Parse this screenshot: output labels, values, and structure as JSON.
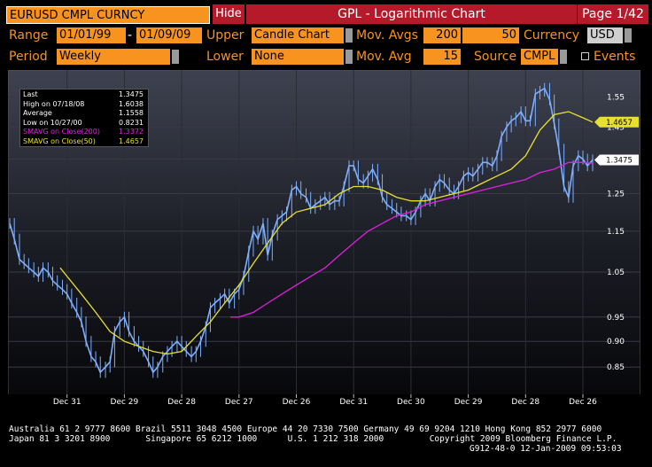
{
  "header": {
    "security": "EURUSD CMPL CURNCY",
    "hide_label": "Hide",
    "title": "GPL - Logarithmic Chart",
    "page": "Page 1/42"
  },
  "controls": {
    "range_label": "Range",
    "range_start": "01/01/99",
    "range_sep": "-",
    "range_end": "01/09/09",
    "upper_label": "Upper",
    "upper_value": "Candle Chart",
    "mov_avgs_label": "Mov. Avgs",
    "mov_avg_1": "200",
    "mov_avg_2": "50",
    "currency_label": "Currency",
    "currency_value": "USD",
    "period_label": "Period",
    "period_value": "Weekly",
    "lower_label": "Lower",
    "lower_value": "None",
    "mov_avg_label": "Mov. Avg",
    "mov_avg_lower": "15",
    "source_label": "Source",
    "source_value": "CMPL",
    "events_label": "Events"
  },
  "legend": [
    {
      "label": "Last",
      "value": "1.3475",
      "color": "#ffffff"
    },
    {
      "label": "High on  07/18/08",
      "value": "1.6038",
      "color": "#ffffff"
    },
    {
      "label": "Average",
      "value": "1.1558",
      "color": "#ffffff"
    },
    {
      "label": "Low on  10/27/00",
      "value": "0.8231",
      "color": "#ffffff"
    },
    {
      "label": "SMAVG on Close(200)",
      "value": "1.3372",
      "color": "#e020e0"
    },
    {
      "label": "SMAVG on Close(50)",
      "value": "1.4657",
      "color": "#e8e030"
    }
  ],
  "chart_data": {
    "type": "line",
    "title": "",
    "scale": "log",
    "ylim": [
      0.8,
      1.62
    ],
    "y_ticks": [
      "1.55",
      "1.45",
      "1.35",
      "1.25",
      "1.15",
      "1.05",
      "0.95",
      "0.90",
      "0.85"
    ],
    "y_tick_values": [
      1.55,
      1.45,
      1.35,
      1.25,
      1.15,
      1.05,
      0.95,
      0.9,
      0.85
    ],
    "x_ticks": [
      {
        "month": "Dec 31",
        "year": "1999",
        "t": 1999.0
      },
      {
        "month": "Dec 29",
        "year": "2000",
        "t": 2000.0
      },
      {
        "month": "Dec 28",
        "year": "2001",
        "t": 2001.0
      },
      {
        "month": "Dec 27",
        "year": "2002",
        "t": 2002.0
      },
      {
        "month": "Dec 26",
        "year": "2003",
        "t": 2003.0
      },
      {
        "month": "Dec 31",
        "year": "2004",
        "t": 2004.0
      },
      {
        "month": "Dec 30",
        "year": "2005",
        "t": 2005.0
      },
      {
        "month": "Dec 29",
        "year": "2006",
        "t": 2006.0
      },
      {
        "month": "Dec 28",
        "year": "2007",
        "t": 2007.0
      },
      {
        "month": "Dec 26",
        "year": "2008",
        "t": 2008.0
      }
    ],
    "xlim": [
      1998.0,
      2008.17
    ],
    "series": [
      {
        "name": "EURUSD",
        "color": "#7fb0ff",
        "x": [
          1998.0,
          1998.08,
          1998.17,
          1998.25,
          1998.33,
          1998.42,
          1998.5,
          1998.58,
          1998.67,
          1998.75,
          1998.83,
          1998.92,
          1999.0,
          1999.08,
          1999.17,
          1999.25,
          1999.33,
          1999.42,
          1999.5,
          1999.58,
          1999.67,
          1999.75,
          1999.83,
          1999.92,
          2000.0,
          2000.08,
          2000.17,
          2000.25,
          2000.33,
          2000.42,
          2000.5,
          2000.58,
          2000.67,
          2000.75,
          2000.83,
          2000.92,
          2001.0,
          2001.08,
          2001.17,
          2001.25,
          2001.33,
          2001.42,
          2001.5,
          2001.58,
          2001.67,
          2001.75,
          2001.83,
          2001.92,
          2002.0,
          2002.08,
          2002.17,
          2002.25,
          2002.33,
          2002.42,
          2002.5,
          2002.58,
          2002.67,
          2002.75,
          2002.83,
          2002.92,
          2003.0,
          2003.08,
          2003.17,
          2003.25,
          2003.33,
          2003.42,
          2003.5,
          2003.58,
          2003.67,
          2003.75,
          2003.83,
          2003.92,
          2004.0,
          2004.08,
          2004.17,
          2004.25,
          2004.33,
          2004.42,
          2004.5,
          2004.58,
          2004.67,
          2004.75,
          2004.83,
          2004.92,
          2005.0,
          2005.08,
          2005.17,
          2005.25,
          2005.33,
          2005.42,
          2005.5,
          2005.58,
          2005.67,
          2005.75,
          2005.83,
          2005.92,
          2006.0,
          2006.08,
          2006.17,
          2006.25,
          2006.33,
          2006.42,
          2006.5,
          2006.58,
          2006.67,
          2006.75,
          2006.83,
          2006.92,
          2007.0,
          2007.08,
          2007.17,
          2007.25,
          2007.33,
          2007.42,
          2007.5,
          2007.58,
          2007.67,
          2007.75,
          2007.83,
          2007.92,
          2008.0,
          2008.08,
          2008.17
        ],
        "values": [
          1.17,
          1.13,
          1.08,
          1.07,
          1.06,
          1.05,
          1.04,
          1.06,
          1.05,
          1.03,
          1.02,
          1.01,
          1.0,
          0.98,
          0.96,
          0.94,
          0.9,
          0.87,
          0.86,
          0.84,
          0.85,
          0.86,
          0.92,
          0.94,
          0.95,
          0.92,
          0.9,
          0.89,
          0.88,
          0.86,
          0.84,
          0.85,
          0.87,
          0.88,
          0.89,
          0.9,
          0.89,
          0.88,
          0.87,
          0.88,
          0.9,
          0.93,
          0.97,
          0.98,
          0.99,
          1.0,
          0.98,
          1.0,
          1.01,
          1.04,
          1.1,
          1.15,
          1.13,
          1.17,
          1.09,
          1.14,
          1.18,
          1.19,
          1.2,
          1.26,
          1.27,
          1.25,
          1.24,
          1.21,
          1.22,
          1.23,
          1.24,
          1.22,
          1.23,
          1.23,
          1.27,
          1.33,
          1.33,
          1.29,
          1.28,
          1.3,
          1.32,
          1.29,
          1.24,
          1.22,
          1.21,
          1.2,
          1.19,
          1.19,
          1.18,
          1.2,
          1.23,
          1.25,
          1.23,
          1.27,
          1.29,
          1.28,
          1.26,
          1.25,
          1.27,
          1.3,
          1.31,
          1.3,
          1.32,
          1.34,
          1.34,
          1.33,
          1.36,
          1.42,
          1.45,
          1.47,
          1.48,
          1.5,
          1.47,
          1.47,
          1.56,
          1.57,
          1.58,
          1.54,
          1.46,
          1.38,
          1.27,
          1.24,
          1.33,
          1.36,
          1.35,
          1.33,
          1.3475
        ]
      },
      {
        "name": "SMAVG on Close(50)",
        "color": "#e8e030",
        "x": [
          1998.88,
          1999.0,
          1999.25,
          1999.5,
          1999.75,
          2000.0,
          2000.25,
          2000.5,
          2000.75,
          2001.0,
          2001.25,
          2001.5,
          2001.75,
          2002.0,
          2002.25,
          2002.5,
          2002.75,
          2003.0,
          2003.25,
          2003.5,
          2003.75,
          2004.0,
          2004.25,
          2004.5,
          2004.75,
          2005.0,
          2005.25,
          2005.5,
          2005.75,
          2006.0,
          2006.25,
          2006.5,
          2006.75,
          2007.0,
          2007.25,
          2007.5,
          2007.75,
          2008.0,
          2008.17
        ],
        "values": [
          1.06,
          1.04,
          1.0,
          0.96,
          0.92,
          0.9,
          0.89,
          0.88,
          0.875,
          0.88,
          0.91,
          0.94,
          0.98,
          1.02,
          1.07,
          1.12,
          1.17,
          1.2,
          1.21,
          1.22,
          1.25,
          1.27,
          1.27,
          1.26,
          1.24,
          1.23,
          1.23,
          1.24,
          1.25,
          1.26,
          1.28,
          1.3,
          1.32,
          1.36,
          1.44,
          1.49,
          1.5,
          1.48,
          1.4657
        ]
      },
      {
        "name": "SMAVG on Close(200)",
        "color": "#e020e0",
        "x": [
          2001.85,
          2002.0,
          2002.25,
          2002.5,
          2002.75,
          2003.0,
          2003.25,
          2003.5,
          2003.75,
          2004.0,
          2004.25,
          2004.5,
          2004.75,
          2005.0,
          2005.25,
          2005.5,
          2005.75,
          2006.0,
          2006.25,
          2006.5,
          2006.75,
          2007.0,
          2007.25,
          2007.5,
          2007.75,
          2008.0,
          2008.17
        ],
        "values": [
          0.95,
          0.95,
          0.96,
          0.98,
          1.0,
          1.02,
          1.04,
          1.06,
          1.09,
          1.12,
          1.15,
          1.17,
          1.19,
          1.2,
          1.22,
          1.23,
          1.24,
          1.25,
          1.26,
          1.27,
          1.28,
          1.29,
          1.31,
          1.32,
          1.34,
          1.34,
          1.3372
        ]
      }
    ],
    "price_tags": [
      {
        "label": "1.4657",
        "value": 1.4657,
        "bg": "#e8e030",
        "fg": "#000000"
      },
      {
        "label": "1.3475",
        "value": 1.3475,
        "bg": "#ffffff",
        "fg": "#000000"
      }
    ]
  },
  "footer": {
    "line1": "Australia 61 2 9777 8600 Brazil 5511 3048 4500 Europe 44 20 7330 7500 Germany 49 69 9204 1210 Hong Kong 852 2977 6000",
    "line2": "Japan 81 3 3201 8900       Singapore 65 6212 1000      U.S. 1 212 318 2000         Copyright 2009 Bloomberg Finance L.P.",
    "line3": "G912-48-0 12-Jan-2009 09:53:03"
  }
}
